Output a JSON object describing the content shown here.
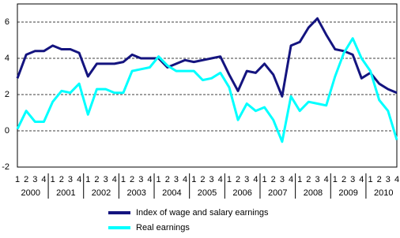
{
  "chart_data": {
    "type": "line",
    "categories": [
      "1",
      "2",
      "3",
      "4",
      "1",
      "2",
      "3",
      "4",
      "1",
      "2",
      "3",
      "4",
      "1",
      "2",
      "3",
      "4",
      "1",
      "2",
      "3",
      "4",
      "1",
      "2",
      "3",
      "4",
      "1",
      "2",
      "3",
      "4",
      "1",
      "2",
      "3",
      "4",
      "1",
      "2",
      "3",
      "4",
      "1",
      "2",
      "3",
      "4",
      "1",
      "2",
      "3",
      "4"
    ],
    "years": [
      "2000",
      "2001",
      "2002",
      "2003",
      "2004",
      "2005",
      "2006",
      "2007",
      "2008",
      "2009",
      "2010"
    ],
    "series": [
      {
        "name": "Index of wage and salary earnings",
        "color": "#14147f",
        "values": [
          2.9,
          4.2,
          4.4,
          4.4,
          4.7,
          4.5,
          4.5,
          4.3,
          3.0,
          3.7,
          3.7,
          3.7,
          3.8,
          4.2,
          4.0,
          4.0,
          4.0,
          3.5,
          3.7,
          3.9,
          3.8,
          3.9,
          4.0,
          4.1,
          3.1,
          2.2,
          3.3,
          3.2,
          3.7,
          3.1,
          1.9,
          4.7,
          4.9,
          5.7,
          6.2,
          5.3,
          4.5,
          4.4,
          4.2,
          2.9,
          3.2,
          2.6,
          2.3,
          2.1
        ]
      },
      {
        "name": "Real earnings",
        "color": "#00ffff",
        "values": [
          0.1,
          1.1,
          0.5,
          0.5,
          1.6,
          2.2,
          2.1,
          2.6,
          0.9,
          2.3,
          2.3,
          2.1,
          2.1,
          3.3,
          3.4,
          3.5,
          4.1,
          3.6,
          3.3,
          3.3,
          3.3,
          2.8,
          2.9,
          3.2,
          2.4,
          0.6,
          1.5,
          1.1,
          1.3,
          0.6,
          -0.6,
          1.9,
          1.1,
          1.6,
          1.5,
          1.4,
          3.0,
          4.3,
          5.1,
          4.0,
          3.3,
          1.7,
          1.1,
          -0.5
        ]
      }
    ],
    "ylim": [
      -2,
      7
    ],
    "yticks": [
      -2,
      0,
      2,
      4,
      6
    ],
    "grid": true
  }
}
